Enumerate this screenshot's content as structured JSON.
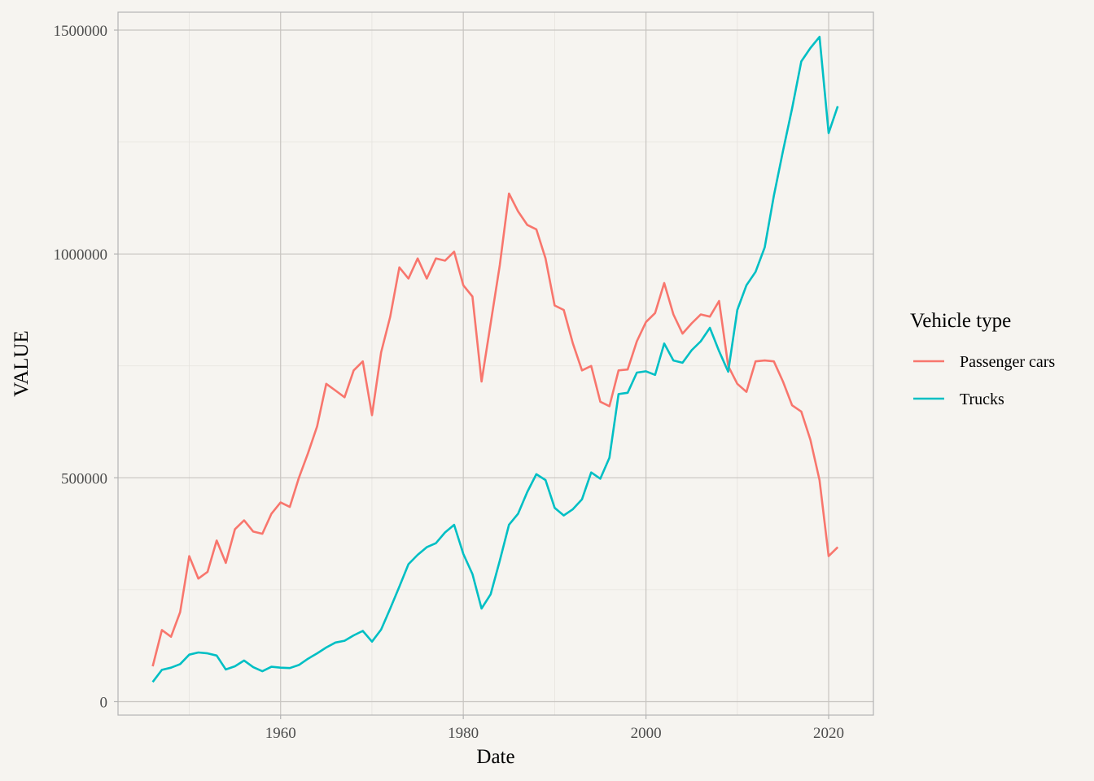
{
  "chart_data": {
    "type": "line",
    "title": "",
    "xlabel": "Date",
    "ylabel": "VALUE",
    "xlim": [
      1942.2,
      2024.9
    ],
    "ylim": [
      -30000,
      1540000
    ],
    "x_ticks": [
      1960,
      1980,
      2000,
      2020
    ],
    "y_ticks": [
      0,
      500000,
      1000000,
      1500000
    ],
    "y_tick_labels": [
      "0",
      "500000",
      "1000000",
      "1500000"
    ],
    "x_minor_ticks": [
      1950,
      1970,
      1990,
      2010
    ],
    "y_minor_ticks": [
      250000,
      750000,
      1250000
    ],
    "grid": true,
    "legend": {
      "title": "Vehicle type",
      "position": "right"
    },
    "x": [
      1946,
      1947,
      1948,
      1949,
      1950,
      1951,
      1952,
      1953,
      1954,
      1955,
      1956,
      1957,
      1958,
      1959,
      1960,
      1961,
      1962,
      1963,
      1964,
      1965,
      1966,
      1967,
      1968,
      1969,
      1970,
      1971,
      1972,
      1973,
      1974,
      1975,
      1976,
      1977,
      1978,
      1979,
      1980,
      1981,
      1982,
      1983,
      1984,
      1985,
      1986,
      1987,
      1988,
      1989,
      1990,
      1991,
      1992,
      1993,
      1994,
      1995,
      1996,
      1997,
      1998,
      1999,
      2000,
      2001,
      2002,
      2003,
      2004,
      2005,
      2006,
      2007,
      2008,
      2009,
      2010,
      2011,
      2012,
      2013,
      2014,
      2015,
      2016,
      2017,
      2018,
      2019,
      2020,
      2021
    ],
    "series": [
      {
        "name": "Passenger cars",
        "color": "#f8766d",
        "values": [
          79000,
          160000,
          145000,
          200000,
          325000,
          275000,
          290000,
          360000,
          310000,
          385000,
          405000,
          380000,
          375000,
          420000,
          445000,
          435000,
          500000,
          555000,
          615000,
          710000,
          695000,
          680000,
          740000,
          760000,
          640000,
          780000,
          860000,
          970000,
          945000,
          990000,
          945000,
          990000,
          985000,
          1005000,
          930000,
          905000,
          715000,
          845000,
          975000,
          1135000,
          1095000,
          1065000,
          1055000,
          990000,
          885000,
          875000,
          800000,
          740000,
          750000,
          670000,
          660000,
          740000,
          742000,
          805000,
          848000,
          868000,
          935000,
          865000,
          822000,
          845000,
          865000,
          860000,
          895000,
          750000,
          710000,
          692000,
          760000,
          762000,
          760000,
          715000,
          662000,
          648000,
          585000,
          495000,
          325000,
          345000
        ]
      },
      {
        "name": "Trucks",
        "color": "#00bfc4",
        "values": [
          44000,
          71000,
          76000,
          84000,
          105000,
          110000,
          108000,
          103000,
          72000,
          79000,
          92000,
          77000,
          68000,
          78000,
          76000,
          75000,
          82000,
          96000,
          108000,
          121000,
          132000,
          136000,
          148000,
          158000,
          134000,
          161000,
          208000,
          257000,
          307000,
          328000,
          345000,
          354000,
          378000,
          395000,
          330000,
          285000,
          208000,
          240000,
          315000,
          395000,
          420000,
          468000,
          508000,
          495000,
          433000,
          416000,
          430000,
          452000,
          512000,
          498000,
          545000,
          687000,
          690000,
          735000,
          738000,
          730000,
          800000,
          762000,
          757000,
          785000,
          805000,
          835000,
          783000,
          737000,
          875000,
          930000,
          960000,
          1015000,
          1130000,
          1230000,
          1325000,
          1430000,
          1460000,
          1485000,
          1270000,
          1330000
        ]
      }
    ]
  }
}
